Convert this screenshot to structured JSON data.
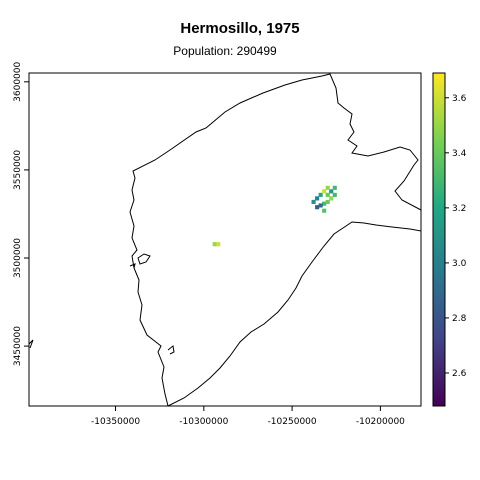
{
  "map": {
    "title": "Hermosillo, 1975",
    "subtitle": "Population: 290499",
    "x_ticks": [
      {
        "value": -10350000,
        "label": "-10350000"
      },
      {
        "value": -10300000,
        "label": "-10300000"
      },
      {
        "value": -10250000,
        "label": "-10250000"
      },
      {
        "value": -10200000,
        "label": "-10200000"
      }
    ],
    "y_ticks": [
      {
        "value": 3450000,
        "label": "3450000"
      },
      {
        "value": 3500000,
        "label": "3500000"
      },
      {
        "value": 3550000,
        "label": "3550000"
      },
      {
        "value": 3600000,
        "label": "3600000"
      }
    ],
    "legend": {
      "ticks": [
        {
          "value": 2.6,
          "label": "2.6"
        },
        {
          "value": 2.8,
          "label": "2.8"
        },
        {
          "value": 3.0,
          "label": "3.0"
        },
        {
          "value": 3.2,
          "label": "3.2"
        },
        {
          "value": 3.4,
          "label": "3.4"
        },
        {
          "value": 3.6,
          "label": "3.6"
        }
      ],
      "min": 2.48,
      "max": 3.69,
      "palette": "viridis"
    },
    "extent": {
      "xmin": -10399000,
      "xmax": -10177000,
      "ymin": 3416000,
      "ymax": 3605000
    },
    "raster_cells": [
      {
        "x": -10232000,
        "y": 3531000,
        "v": 3.3
      },
      {
        "x": -10230000,
        "y": 3532000,
        "v": 3.4
      },
      {
        "x": -10228000,
        "y": 3534000,
        "v": 3.5
      },
      {
        "x": -10234000,
        "y": 3536000,
        "v": 3.2
      },
      {
        "x": -10232000,
        "y": 3538000,
        "v": 3.6
      },
      {
        "x": -10236000,
        "y": 3534000,
        "v": 3.0
      },
      {
        "x": -10230000,
        "y": 3536000,
        "v": 3.4
      },
      {
        "x": -10228000,
        "y": 3538000,
        "v": 3.1
      },
      {
        "x": -10226000,
        "y": 3536000,
        "v": 3.3
      },
      {
        "x": -10234000,
        "y": 3530000,
        "v": 2.9
      },
      {
        "x": -10236000,
        "y": 3529000,
        "v": 2.85
      },
      {
        "x": -10232000,
        "y": 3527000,
        "v": 3.35
      },
      {
        "x": -10230000,
        "y": 3540000,
        "v": 3.5
      },
      {
        "x": -10226000,
        "y": 3540000,
        "v": 3.3
      },
      {
        "x": -10238000,
        "y": 3532000,
        "v": 3.1
      },
      {
        "x": -10294000,
        "y": 3508000,
        "v": 3.5
      },
      {
        "x": -10292000,
        "y": 3508000,
        "v": 3.6
      }
    ]
  }
}
